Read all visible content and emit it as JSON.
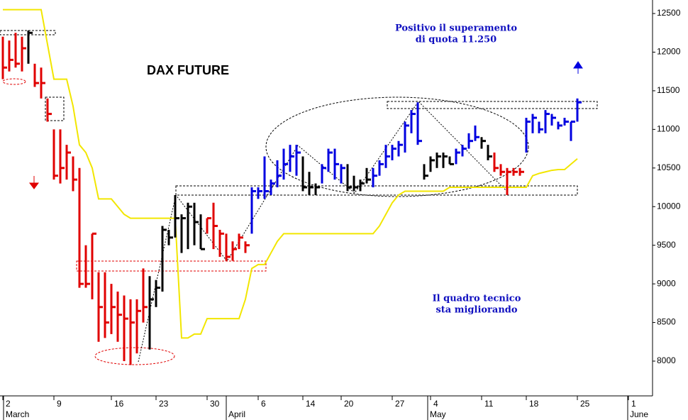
{
  "chart_data": {
    "type": "ohlc",
    "title": "DAX FUTURE",
    "annotations": [
      "Positivo il superamento",
      "di quota 11.250",
      "Il quadro tecnico",
      "sta migliorando"
    ],
    "month_labels": [
      "March",
      "April",
      "May",
      "June"
    ],
    "categories": [
      "2",
      null,
      null,
      null,
      null,
      null,
      null,
      null,
      "9",
      null,
      null,
      null,
      null,
      null,
      null,
      null,
      null,
      "16",
      null,
      null,
      null,
      null,
      null,
      null,
      "23",
      null,
      null,
      null,
      null,
      null,
      null,
      null,
      "30",
      null,
      null,
      null,
      null,
      null,
      null,
      null,
      "6",
      null,
      null,
      null,
      null,
      null,
      null,
      "14",
      null,
      null,
      null,
      null,
      null,
      "20",
      null,
      null,
      null,
      null,
      null,
      null,
      null,
      "27",
      null,
      null,
      null,
      null,
      null,
      "4",
      null,
      null,
      null,
      null,
      null,
      null,
      null,
      "11",
      null,
      null,
      null,
      null,
      null,
      null,
      "18",
      null,
      null,
      null,
      null,
      null,
      null,
      null,
      "25",
      null,
      null,
      null,
      null,
      null,
      null,
      null,
      "1"
    ],
    "high": [
      12200,
      12150,
      12250,
      12200,
      12280,
      11850,
      11800,
      11400,
      11000,
      11000,
      10800,
      10650,
      10500,
      9500,
      9650,
      9150,
      9150,
      9000,
      8900,
      8850,
      8800,
      8800,
      9200,
      9100,
      9050,
      9750,
      9700,
      10150,
      9900,
      10050,
      10050,
      9900,
      9850,
      10050,
      9700,
      9650,
      9550,
      9650,
      9550,
      10250,
      10250,
      10650,
      10350,
      10600,
      10750,
      10800,
      10800,
      10650,
      10450,
      10300,
      10550,
      10750,
      10750,
      10550,
      10550,
      10400,
      10350,
      10500,
      10500,
      10600,
      10800,
      10800,
      10850,
      11100,
      11250,
      11350,
      10550,
      10650,
      10700,
      10700,
      10650,
      10750,
      10800,
      10950,
      11050,
      10900,
      10800,
      10700,
      10550,
      10500,
      10500,
      10500,
      11150,
      11200,
      11100,
      11250,
      11200,
      11100,
      11150,
      11100,
      11400,
      null,
      null,
      null,
      null,
      null,
      null,
      null,
      null
    ],
    "low": [
      11650,
      11750,
      11800,
      11750,
      11850,
      11550,
      11400,
      11100,
      10350,
      10300,
      10350,
      10200,
      8950,
      8950,
      8800,
      8250,
      8300,
      8350,
      8250,
      8000,
      7950,
      8100,
      8500,
      8150,
      8700,
      8900,
      9500,
      9600,
      9400,
      9450,
      9500,
      9450,
      9650,
      9450,
      9350,
      9300,
      9300,
      9450,
      9400,
      9650,
      10100,
      10100,
      10150,
      10250,
      10350,
      10450,
      10400,
      10200,
      10150,
      10150,
      10300,
      10450,
      10350,
      10300,
      10200,
      10200,
      10200,
      10300,
      10250,
      10400,
      10500,
      10600,
      10650,
      10700,
      10950,
      10800,
      10350,
      10450,
      10500,
      10500,
      10550,
      10550,
      10650,
      10750,
      10850,
      10750,
      10600,
      10450,
      10400,
      10150,
      10400,
      10400,
      10700,
      10950,
      10950,
      10950,
      11050,
      11000,
      11050,
      10850,
      11100,
      null,
      null,
      null,
      null,
      null,
      null,
      null,
      null
    ],
    "close": [
      11800,
      11900,
      11850,
      12050,
      12250,
      11600,
      11600,
      11200,
      10400,
      10500,
      10700,
      10350,
      9000,
      9000,
      9650,
      8700,
      8500,
      8700,
      8600,
      8550,
      8500,
      8650,
      8700,
      8800,
      8950,
      9700,
      9600,
      9850,
      9850,
      10000,
      9800,
      9450,
      9850,
      9750,
      9650,
      9350,
      9450,
      9600,
      9500,
      10200,
      10200,
      10200,
      10300,
      10400,
      10550,
      10650,
      10700,
      10250,
      10250,
      10250,
      10500,
      10700,
      10550,
      10500,
      10250,
      10250,
      10300,
      10350,
      10400,
      10550,
      10650,
      10750,
      10800,
      11050,
      11200,
      10850,
      10400,
      10600,
      10650,
      10650,
      10550,
      10700,
      10750,
      10850,
      10900,
      10850,
      10650,
      10500,
      10450,
      10450,
      10450,
      10450,
      11100,
      11150,
      11000,
      11200,
      11150,
      11050,
      11100,
      11100,
      11350,
      null,
      null,
      null,
      null,
      null,
      null,
      null,
      null
    ],
    "bar_colors": "rrrrkrrrrrrrrrrrrrrrrrrkkkkkkkkkrrrrrrrbbbbbbbbkkkbbbbkkkkbbbbbbbbkkkkkbbbbkkrrrrrbbbbbbbbb",
    "palette": {
      "r": "#e00000",
      "k": "#000000",
      "b": "#0000e0"
    },
    "line": {
      "color": "#f2e600",
      "values": [
        12550,
        12550,
        12550,
        12550,
        12550,
        12550,
        12550,
        12100,
        11650,
        11650,
        11650,
        11300,
        10800,
        10700,
        10500,
        10100,
        10100,
        10100,
        10000,
        9900,
        9850,
        9850,
        9850,
        9850,
        9850,
        9850,
        9850,
        9850,
        8300,
        8300,
        8350,
        8350,
        8550,
        8550,
        8550,
        8550,
        8550,
        8550,
        8800,
        9200,
        9250,
        9250,
        9400,
        9550,
        9650,
        9650,
        9650,
        9650,
        9650,
        9650,
        9650,
        9650,
        9650,
        9650,
        9650,
        9650,
        9650,
        9650,
        9650,
        9750,
        9900,
        10050,
        10150,
        10200,
        10200,
        10200,
        10200,
        10200,
        10200,
        10200,
        10250,
        10250,
        10250,
        10250,
        10250,
        10250,
        10250,
        10250,
        10250,
        10250,
        10250,
        10250,
        10250,
        10400,
        10430,
        10450,
        10470,
        10480,
        10480,
        10550,
        10620,
        null,
        null,
        null,
        null,
        null,
        null,
        null,
        null
      ]
    },
    "ylim": [
      7550,
      12675
    ],
    "yticks": [
      8000,
      8500,
      9000,
      9500,
      10000,
      10500,
      11000,
      11500,
      12000,
      12500
    ]
  }
}
